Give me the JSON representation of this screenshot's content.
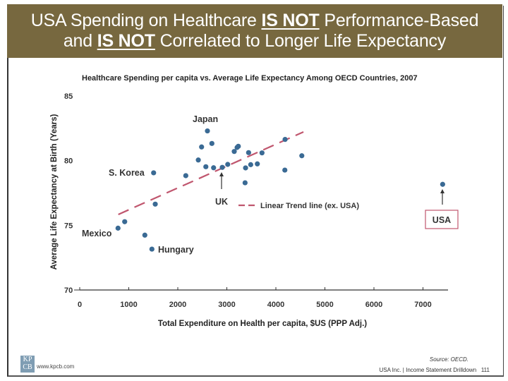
{
  "page": {
    "title_line1_a": "USA Spending on Healthcare ",
    "title_line1_emph": "IS NOT",
    "title_line1_b": " Performance-Based",
    "title_line2_a": "and ",
    "title_line2_emph": "IS NOT",
    "title_line2_b": " Correlated to Longer Life Expectancy",
    "banner_color": "#77683f",
    "footer": {
      "source": "Source: OECD.",
      "page_label": "USA Inc. | Income Statement Drilldown",
      "page_number": "111",
      "logo_top": "KP",
      "logo_bottom": "CB",
      "url": "www.kpcb.com"
    }
  },
  "chart_data": {
    "type": "scatter",
    "title": "Healthcare Spending per capita vs. Average Life Expectancy Among OECD Countries, 2007",
    "xlabel": "Total Expenditure on Health per capita, $US (PPP Adj.)",
    "ylabel": "Average Life Expectancy at Birth (Years)",
    "xlim": [
      0,
      7500
    ],
    "ylim": [
      70,
      85
    ],
    "xticks": [
      0,
      1000,
      2000,
      3000,
      4000,
      5000,
      6000,
      7000
    ],
    "yticks": [
      70,
      75,
      80,
      85
    ],
    "grid": false,
    "point_color": "#3a6a94",
    "trend_color": "#c0566e",
    "highlight_color": "#c0566e",
    "points": [
      {
        "x": 2604,
        "y": 82.3,
        "label": "Japan"
      },
      {
        "x": 2485,
        "y": 81.06,
        "label": ""
      },
      {
        "x": 2695,
        "y": 81.33,
        "label": ""
      },
      {
        "x": 2418,
        "y": 80.05,
        "label": ""
      },
      {
        "x": 2572,
        "y": 79.53,
        "label": ""
      },
      {
        "x": 2730,
        "y": 79.45,
        "label": ""
      },
      {
        "x": 2907,
        "y": 79.48,
        "label": "UK"
      },
      {
        "x": 3018,
        "y": 79.71,
        "label": ""
      },
      {
        "x": 2163,
        "y": 78.84,
        "label": ""
      },
      {
        "x": 3151,
        "y": 80.71,
        "label": ""
      },
      {
        "x": 3209,
        "y": 81.02,
        "label": ""
      },
      {
        "x": 3234,
        "y": 81.11,
        "label": ""
      },
      {
        "x": 3444,
        "y": 80.62,
        "label": ""
      },
      {
        "x": 3717,
        "y": 80.6,
        "label": ""
      },
      {
        "x": 3382,
        "y": 79.44,
        "label": ""
      },
      {
        "x": 3487,
        "y": 79.69,
        "label": ""
      },
      {
        "x": 3622,
        "y": 79.75,
        "label": ""
      },
      {
        "x": 3372,
        "y": 78.29,
        "label": ""
      },
      {
        "x": 4188,
        "y": 81.64,
        "label": ""
      },
      {
        "x": 4183,
        "y": 79.27,
        "label": ""
      },
      {
        "x": 4529,
        "y": 80.38,
        "label": ""
      },
      {
        "x": 1507,
        "y": 79.06,
        "label": "S. Korea"
      },
      {
        "x": 1540,
        "y": 76.64,
        "label": ""
      },
      {
        "x": 917,
        "y": 75.28,
        "label": ""
      },
      {
        "x": 781,
        "y": 74.78,
        "label": "Mexico"
      },
      {
        "x": 1328,
        "y": 74.24,
        "label": ""
      },
      {
        "x": 1472,
        "y": 73.16,
        "label": "Hungary"
      },
      {
        "x": 7401,
        "y": 78.17,
        "label": "USA"
      }
    ],
    "trendline": {
      "label": "Linear Trend line (ex. USA)",
      "from": {
        "x": 787,
        "y": 75.84
      },
      "to": {
        "x": 4562,
        "y": 82.22
      }
    },
    "annotations": {
      "japan": "Japan",
      "uk": "UK",
      "skorea": "S. Korea",
      "mexico": "Mexico",
      "hungary": "Hungary",
      "usa": "USA"
    }
  }
}
